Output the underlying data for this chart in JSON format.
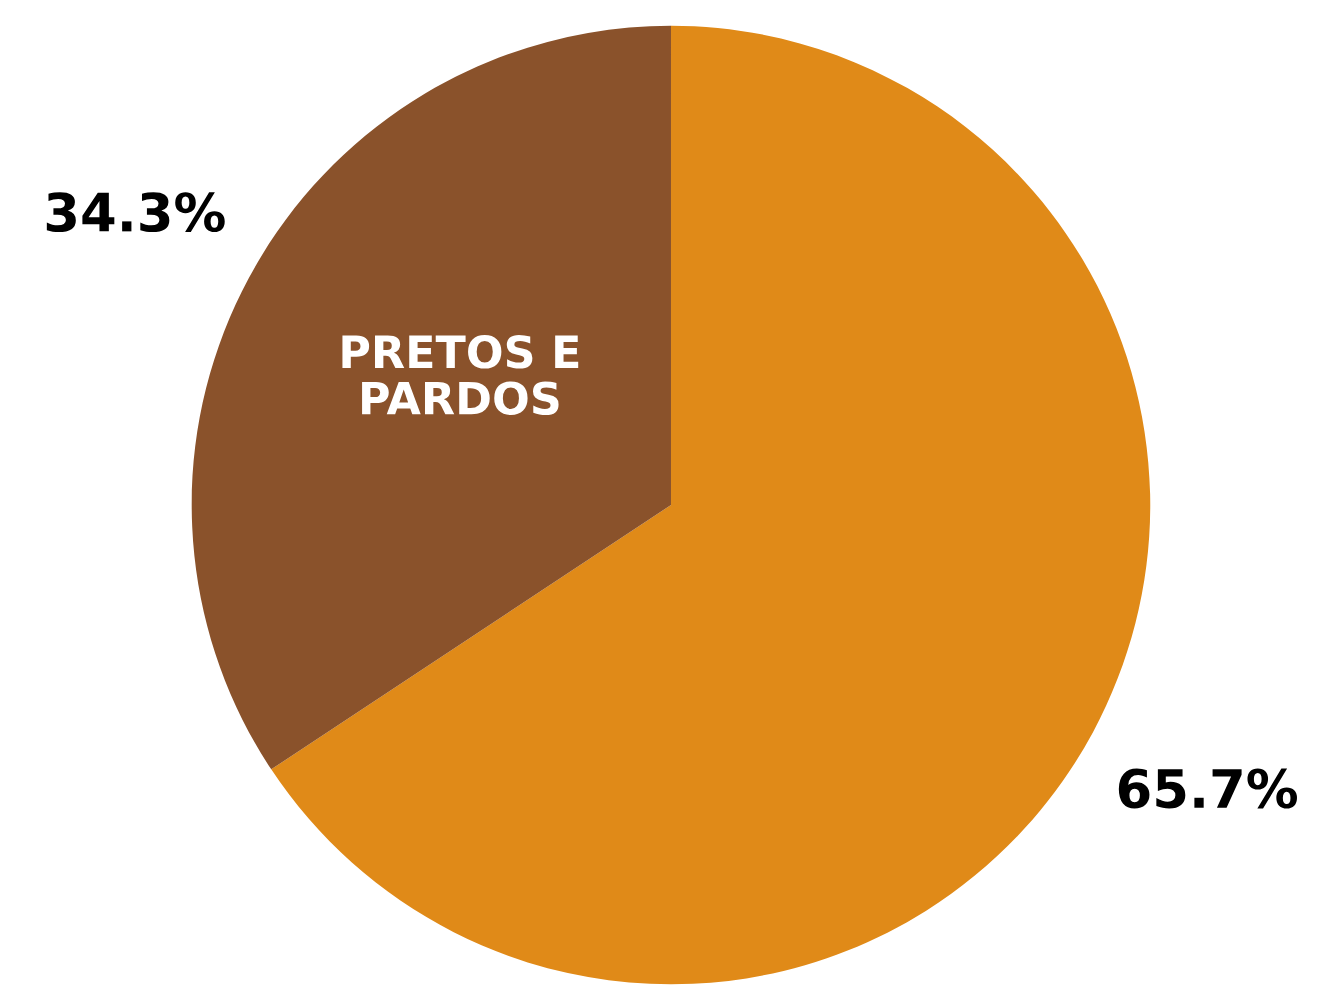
{
  "chart_data": {
    "type": "pie",
    "categories": [
      null,
      "PRETOS E\nPARDOS"
    ],
    "values": [
      65.7,
      34.3
    ],
    "colors": [
      "#e08a18",
      "#8a522b"
    ],
    "value_labels": [
      "65.7%",
      "34.3%"
    ]
  }
}
